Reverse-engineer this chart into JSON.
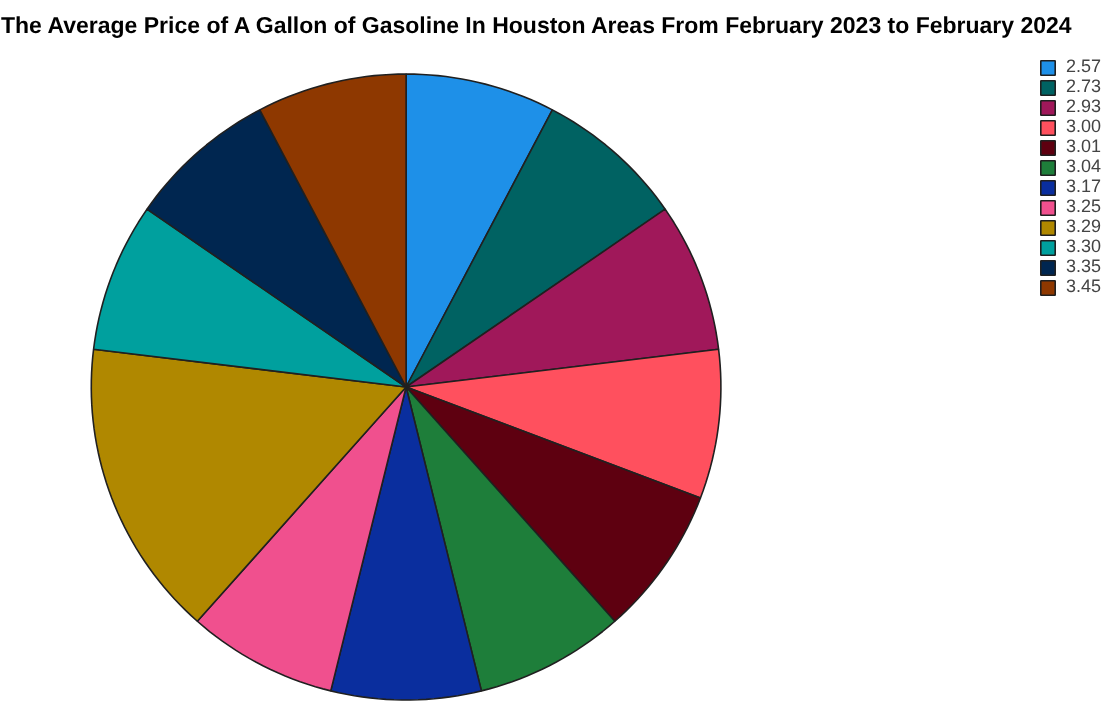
{
  "chart_data": {
    "type": "pie",
    "title": "The Average Price of A Gallon of Gasoline In Houston Areas From February 2023 to February 2024",
    "categories": [
      "2.57",
      "2.73",
      "2.93",
      "3.00",
      "3.01",
      "3.04",
      "3.17",
      "3.25",
      "3.29",
      "3.30",
      "3.35",
      "3.45"
    ],
    "values": [
      7.692,
      7.692,
      7.692,
      7.692,
      7.692,
      7.692,
      7.692,
      7.692,
      15.385,
      7.692,
      7.692,
      7.692
    ],
    "colors": [
      "#1e90e8",
      "#006262",
      "#a0185a",
      "#ff505e",
      "#5e0010",
      "#1e7e3a",
      "#0a2e9e",
      "#f0508e",
      "#b08800",
      "#00a09e",
      "#002650",
      "#8e3800"
    ],
    "legend": "top right"
  }
}
